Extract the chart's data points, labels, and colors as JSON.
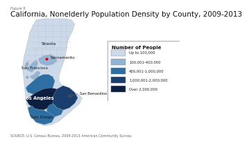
{
  "figure_label": "Figure 9",
  "title": "California, Nonelderly Population Density by County, 2009-2013",
  "source": "SOURCE: U.S. Census Bureau, 2009-2013 American Community Survey.",
  "legend_title": "Number of People",
  "legend_items": [
    {
      "label": "Up to 100,000",
      "color": "#ccd9e8"
    },
    {
      "label": "100,001-400,000",
      "color": "#91b4d5"
    },
    {
      "label": "400,001-1,000,000",
      "color": "#2e6fa3"
    },
    {
      "label": "1,000,001-2,000,000",
      "color": "#1a3f6f"
    },
    {
      "label": "Over 2,000,000",
      "color": "#0c1f40"
    }
  ],
  "background_color": "#ffffff",
  "title_fontsize": 7.5,
  "label_fontsize": 4.5,
  "source_fontsize": 3.5
}
